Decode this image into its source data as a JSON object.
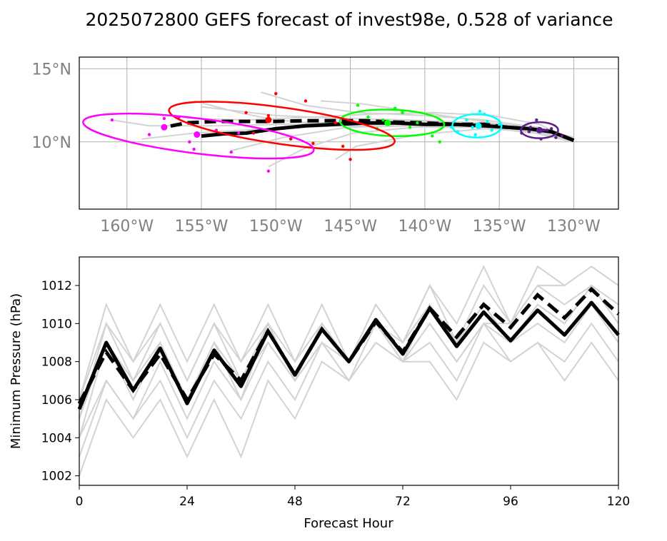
{
  "figure": {
    "title": "2025072800 GEFS forecast of invest98e, 0.528 of variance"
  },
  "chart_data": [
    {
      "type": "scatter",
      "panel": "track",
      "xlim": [
        -163.2,
        -127.0
      ],
      "ylim": [
        5.4,
        15.8
      ],
      "grid": true,
      "x_ticks": [
        -160,
        -155,
        -150,
        -145,
        -140,
        -135,
        -130
      ],
      "x_tick_labels": [
        "160°W",
        "155°W",
        "150°W",
        "145°W",
        "140°W",
        "135°W",
        "130°W"
      ],
      "y_ticks": [
        10,
        15
      ],
      "y_tick_labels": [
        "10°N",
        "15°N"
      ],
      "ensemble_tracks": [
        {
          "lon": [
            -130.0,
            -132.5,
            -136.0,
            -140.5,
            -145.0,
            -149.5,
            -154.0,
            -158.5,
            -161.0
          ],
          "lat": [
            10.0,
            10.8,
            11.2,
            11.2,
            11.3,
            11.2,
            11.1,
            11.1,
            11.5
          ]
        },
        {
          "lon": [
            -130.2,
            -132.8,
            -136.5,
            -141.0,
            -145.5,
            -150.0,
            -155.0
          ],
          "lat": [
            10.1,
            10.9,
            11.3,
            11.5,
            11.6,
            11.8,
            12.4
          ]
        },
        {
          "lon": [
            -130.0,
            -132.5,
            -136.0,
            -140.0,
            -144.5,
            -148.0,
            -151.0
          ],
          "lat": [
            10.2,
            11.0,
            11.5,
            11.8,
            12.0,
            12.5,
            13.4
          ]
        },
        {
          "lon": [
            -130.1,
            -132.6,
            -136.2,
            -140.6,
            -144.8,
            -148.0,
            -150.5
          ],
          "lat": [
            10.0,
            10.6,
            11.0,
            11.0,
            10.6,
            9.6,
            8.3
          ]
        },
        {
          "lon": [
            -130.3,
            -132.9,
            -136.4,
            -140.8,
            -145.2,
            -149.5,
            -153.0
          ],
          "lat": [
            10.1,
            10.7,
            11.0,
            11.1,
            11.0,
            10.3,
            9.4
          ]
        },
        {
          "lon": [
            -130.0,
            -132.4,
            -135.8,
            -140.0,
            -144.0,
            -147.5,
            -150.0,
            -152.5,
            -155.5
          ],
          "lat": [
            10.3,
            11.0,
            11.3,
            11.4,
            11.4,
            11.3,
            11.5,
            12.0,
            12.8
          ]
        },
        {
          "lon": [
            -130.2,
            -132.7,
            -136.3,
            -140.9,
            -145.6,
            -150.5,
            -155.5,
            -159.0
          ],
          "lat": [
            10.0,
            10.9,
            11.1,
            11.2,
            11.1,
            10.9,
            10.6,
            10.2
          ]
        },
        {
          "lon": [
            -130.0,
            -132.5,
            -136.1,
            -140.2,
            -144.2,
            -147.0
          ],
          "lat": [
            10.1,
            10.8,
            11.4,
            12.0,
            12.6,
            12.8
          ]
        },
        {
          "lon": [
            -130.1,
            -132.6,
            -136.0,
            -140.4,
            -144.6,
            -146.0
          ],
          "lat": [
            10.2,
            10.7,
            10.9,
            10.5,
            9.7,
            8.8
          ]
        },
        {
          "lon": [
            -130.0,
            -132.3,
            -135.5,
            -139.5,
            -143.5,
            -147.5,
            -152.0,
            -156.0
          ],
          "lat": [
            10.0,
            11.2,
            11.8,
            12.0,
            11.9,
            11.7,
            11.5,
            11.6
          ]
        }
      ],
      "mean_track_dashed": {
        "lon": [
          -130.0,
          -131.5,
          -133.0,
          -134.5,
          -136.0,
          -138.0,
          -140.0,
          -142.0,
          -144.0,
          -146.0,
          -148.0,
          -150.0,
          -152.0,
          -154.0,
          -156.0,
          -157.5
        ],
        "lat": [
          10.1,
          10.7,
          10.9,
          11.0,
          11.2,
          11.2,
          11.3,
          11.35,
          11.45,
          11.45,
          11.45,
          11.4,
          11.4,
          11.4,
          11.3,
          11.0
        ]
      },
      "mean_track_solid": {
        "lon": [
          -130.0,
          -131.5,
          -133.0,
          -134.5,
          -136.0,
          -138.0,
          -140.0,
          -142.0,
          -144.0,
          -146.0,
          -148.0,
          -150.0,
          -152.0,
          -153.5,
          -155.0
        ],
        "lat": [
          10.1,
          10.7,
          10.9,
          11.0,
          11.1,
          11.2,
          11.2,
          11.3,
          11.3,
          11.2,
          11.1,
          10.9,
          10.6,
          10.55,
          10.4
        ]
      },
      "uncertainty_ellipses": [
        {
          "color": "#5b1e8a",
          "center_lon": -132.3,
          "center_lat": 10.8,
          "width_lon": 2.5,
          "height_lat": 1.1,
          "angle_deg": 0
        },
        {
          "color": "#00ffff",
          "center_lon": -136.5,
          "center_lat": 11.1,
          "width_lon": 3.3,
          "height_lat": 1.6,
          "angle_deg": 0
        },
        {
          "color": "#00ff00",
          "center_lon": -142.2,
          "center_lat": 11.3,
          "width_lon": 7.0,
          "height_lat": 1.8,
          "angle_deg": -2
        },
        {
          "color": "#ff0000",
          "center_lon": -149.6,
          "center_lat": 11.1,
          "width_lon": 15.3,
          "height_lat": 2.5,
          "angle_deg": -8
        },
        {
          "color": "#ff00ff",
          "center_lon": -155.2,
          "center_lat": 10.4,
          "width_lon": 15.6,
          "height_lat": 2.4,
          "angle_deg": -7
        }
      ],
      "member_positions": [
        {
          "color": "#5b1e8a",
          "lon": [
            -132.5,
            -131.8,
            -133.0,
            -132.2,
            -131.5,
            -132.9,
            -133.5,
            -130.8,
            -132.0,
            -131.2
          ],
          "lat": [
            11.5,
            10.8,
            10.7,
            10.2,
            10.9,
            11.0,
            10.6,
            10.4,
            10.8,
            10.3
          ]
        },
        {
          "color": "#00ffff",
          "lon": [
            -136.0,
            -137.2,
            -135.5,
            -136.8,
            -137.8,
            -136.3,
            -135.0,
            -138.2,
            -136.6,
            -135.8
          ],
          "lat": [
            11.9,
            11.5,
            10.8,
            11.0,
            10.7,
            12.1,
            11.2,
            11.0,
            10.5,
            11.4
          ]
        },
        {
          "color": "#00ff00",
          "lon": [
            -144.5,
            -142.0,
            -141.0,
            -143.2,
            -139.5,
            -143.8,
            -141.5,
            -142.8,
            -140.5,
            -139.0
          ],
          "lat": [
            12.5,
            12.3,
            11.0,
            10.9,
            10.4,
            11.7,
            12.0,
            11.5,
            11.3,
            10.0
          ]
        },
        {
          "color": "#ff0000",
          "lon": [
            -148.0,
            -147.5,
            -150.0,
            -149.0,
            -146.0,
            -152.0,
            -145.0,
            -145.5,
            -151.5,
            -150.5
          ],
          "lat": [
            12.8,
            9.9,
            13.3,
            10.2,
            11.3,
            12.0,
            8.8,
            9.7,
            10.6,
            11.8
          ]
        },
        {
          "color": "#ff00ff",
          "lon": [
            -161.0,
            -157.5,
            -156.5,
            -155.5,
            -154.0,
            -153.0,
            -152.5,
            -150.5,
            -155.8,
            -158.5
          ],
          "lat": [
            11.5,
            11.6,
            11.7,
            9.5,
            10.8,
            9.3,
            10.6,
            8.0,
            10.0,
            10.5
          ]
        }
      ],
      "ensemble_mean_positions": [
        {
          "color": "#5b1e8a",
          "lon": -132.3,
          "lat": 10.8
        },
        {
          "color": "#00ffff",
          "lon": -136.4,
          "lat": 11.1
        },
        {
          "color": "#00ff00",
          "lon": -142.5,
          "lat": 11.3
        },
        {
          "color": "#ff0000",
          "lon": -150.5,
          "lat": 11.5
        },
        {
          "color": "#ff00ff",
          "lon": -157.5,
          "lat": 11.0
        },
        {
          "color": "#ff00ff",
          "lon": -155.3,
          "lat": 10.5
        }
      ]
    },
    {
      "type": "line",
      "panel": "pressure",
      "xlabel": "Forecast Hour",
      "ylabel": "Minimum Pressure (hPa)",
      "xlim": [
        0,
        120
      ],
      "ylim": [
        1001.5,
        1013.5
      ],
      "x_ticks": [
        0,
        24,
        48,
        72,
        96,
        120
      ],
      "y_ticks": [
        1002,
        1004,
        1006,
        1008,
        1010,
        1012
      ],
      "x": [
        0,
        6,
        12,
        18,
        24,
        30,
        36,
        42,
        48,
        54,
        60,
        66,
        72,
        78,
        84,
        90,
        96,
        102,
        108,
        114,
        120
      ],
      "series": [
        {
          "style": "member",
          "values": [
            1006,
            1011,
            1008,
            1011,
            1008,
            1011,
            1008,
            1011,
            1008,
            1011,
            1008,
            1011,
            1009,
            1012,
            1009,
            1012,
            1010,
            1013,
            1012,
            1013,
            1012
          ]
        },
        {
          "style": "member",
          "values": [
            1005,
            1010,
            1007,
            1010,
            1007,
            1010,
            1007,
            1010,
            1008,
            1010,
            1008,
            1011,
            1009,
            1012,
            1010,
            1013,
            1010,
            1012,
            1012,
            null,
            null
          ]
        },
        {
          "style": "member",
          "values": [
            1004,
            1009,
            1006,
            1009,
            1006,
            1009,
            1006,
            1010,
            1007,
            1010,
            1008,
            1010,
            1009,
            1011,
            1009,
            1011,
            1009,
            1011,
            1010,
            1012,
            1010
          ]
        },
        {
          "style": "member",
          "values": [
            1004,
            1007,
            1005,
            1008,
            1005,
            1008,
            1006,
            1009,
            1007,
            1009,
            1007,
            1010,
            1008,
            1010,
            1008,
            1010,
            1009,
            1010,
            1009,
            1011,
            1009
          ]
        },
        {
          "style": "member",
          "values": [
            1003,
            1007,
            1005,
            1007,
            1004,
            1007,
            1005,
            1008,
            1006,
            1009,
            1007,
            1009,
            1008,
            1009,
            1007,
            1010,
            1008,
            1009,
            1008,
            1010,
            1008
          ]
        },
        {
          "style": "member",
          "values": [
            1002,
            1006,
            1004,
            1006,
            1003,
            1006,
            1003,
            1007,
            1005,
            1008,
            1007,
            1009,
            1008,
            1008,
            1006,
            1009,
            1008,
            1009,
            1007,
            1009,
            1007
          ]
        },
        {
          "style": "member",
          "values": [
            1006,
            1010,
            1008,
            1010,
            1007,
            1010,
            1008,
            1010,
            1007,
            1009,
            1008,
            1010,
            1008,
            1011,
            1009,
            1011,
            1009,
            1011,
            1010,
            1012,
            1011
          ]
        },
        {
          "style": "member",
          "values": [
            1005,
            1009,
            1007,
            1009,
            1006,
            1009,
            1007,
            1009,
            1007,
            1010,
            1008,
            1010,
            1008,
            1010,
            1008,
            1010,
            1010,
            1012,
            1011,
            1012,
            1010
          ]
        },
        {
          "style": "mean_dashed",
          "values": [
            1005.8,
            1008.5,
            1006.5,
            1008.4,
            1006.0,
            1008.4,
            1007.0,
            1009.6,
            1007.3,
            1009.7,
            1008.0,
            1010.1,
            1008.5,
            1010.8,
            1009.3,
            1011.0,
            1009.8,
            1011.5,
            1010.3,
            1011.8,
            1010.5
          ]
        },
        {
          "style": "mean_solid",
          "values": [
            1005.5,
            1009.0,
            1006.5,
            1008.7,
            1005.8,
            1008.6,
            1006.7,
            1009.6,
            1007.3,
            1009.7,
            1008.0,
            1010.2,
            1008.4,
            1010.8,
            1008.8,
            1010.6,
            1009.1,
            1010.7,
            1009.4,
            1011.1,
            1009.4
          ]
        }
      ]
    }
  ]
}
